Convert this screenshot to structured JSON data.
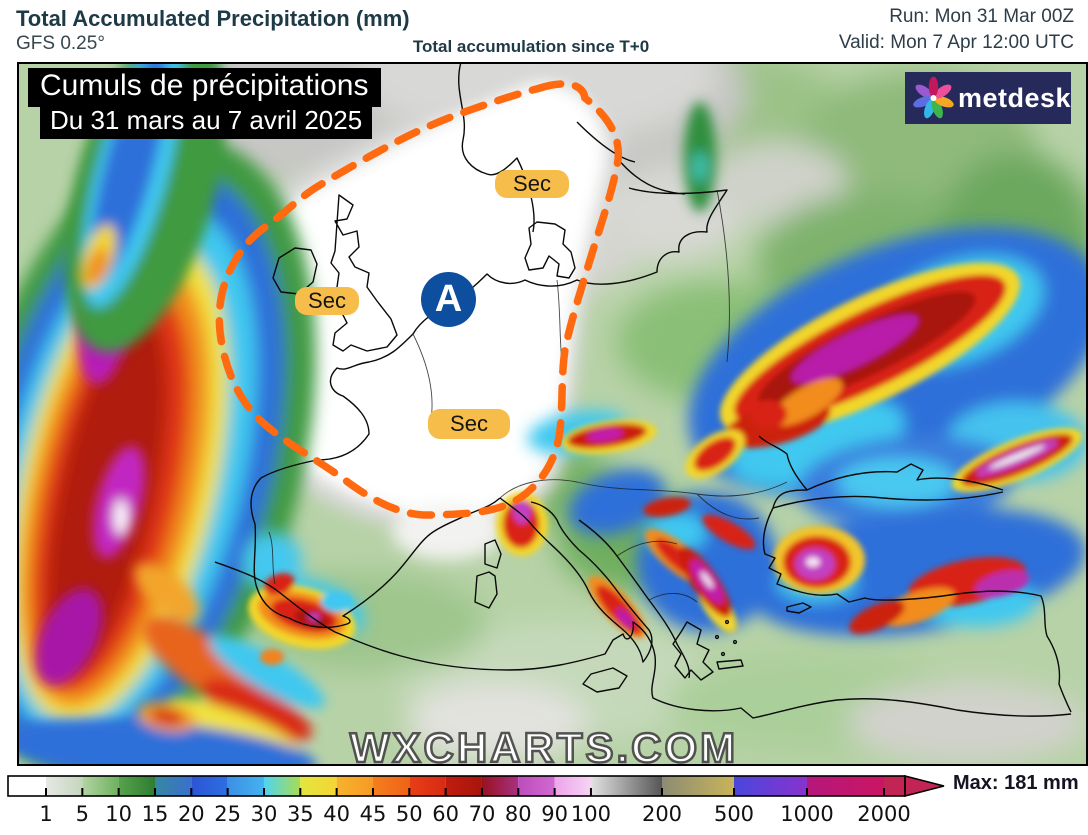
{
  "header": {
    "title": "Total Accumulated Precipitation (mm)",
    "model": "GFS 0.25°",
    "subtitle": "Total accumulation since T+0",
    "run": "Run: Mon 31 Mar 00Z",
    "valid": "Valid: Mon 7 Apr 12:00 UTC"
  },
  "map": {
    "overlay_title_line1": "Cumuls de précipitations",
    "overlay_title_line2": "Du 31 mars au 7 avril 2025",
    "logo_text": "metdesk",
    "sec_label": "Sec",
    "pressure_marker": "A",
    "watermark": "WXCHARTS.COM"
  },
  "colorbar": {
    "max_label": "Max: 181 mm",
    "tick_labels": [
      "1",
      "5",
      "10",
      "15",
      "20",
      "25",
      "30",
      "35",
      "40",
      "45",
      "50",
      "60",
      "70",
      "80",
      "90",
      "100",
      "200",
      "500",
      "1000",
      "2000"
    ],
    "segment_colors": [
      "#ffffff",
      [
        "#e6e8e4",
        "#c5d6bc"
      ],
      [
        "#b2d4a2",
        "#6fb15f"
      ],
      [
        "#57a24b",
        "#2e7d32"
      ],
      [
        "#35889f",
        "#3b6fd0"
      ],
      [
        "#2b55d6",
        "#2e6ee0"
      ],
      [
        "#3c8fe6",
        "#44b4ee"
      ],
      [
        "#4fd4f2",
        "#a8dc52"
      ],
      [
        "#e3e53e",
        "#f5d535"
      ],
      [
        "#f7b32c",
        "#f79a24"
      ],
      [
        "#f57f1e",
        "#ef6318"
      ],
      [
        "#e73f16",
        "#d92a12"
      ],
      [
        "#c11d0e",
        "#a8150b"
      ],
      [
        "#971221",
        "#a8307f"
      ],
      [
        "#bd4cbd",
        "#d06ad0"
      ],
      [
        "#eda3ea",
        "#f6d4f4"
      ],
      [
        "#e2e2e2",
        "#565656"
      ],
      [
        "#8c8c74",
        "#c9b35a"
      ],
      [
        "#4a47dd",
        "#8833cc"
      ],
      [
        "#b5177c",
        "#cb1563"
      ]
    ],
    "arrow_color": "#c22455"
  },
  "colors": {
    "header_text": "#1d3a46",
    "dashed_contour": "#ff6a10",
    "sec_badge_bg": "#f6bd4a",
    "pressure_marker_bg": "#0d4f9e",
    "logo_bg": "#262a5b",
    "map_base_green": "#b7d2a7"
  }
}
